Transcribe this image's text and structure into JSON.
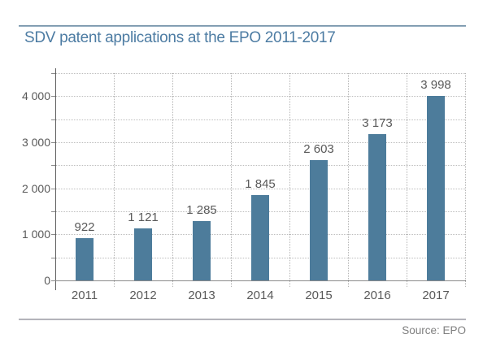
{
  "header": {
    "title": "SDV patent applications at the EPO 2011-2017",
    "accent_color": "#4d7ca3",
    "rule_color": "#68879f"
  },
  "footer": {
    "source_label": "Source: EPO",
    "text_color": "#7f7f7f",
    "rule_color": "#9b9ba2"
  },
  "chart_data": {
    "type": "bar",
    "title": "SDV patent applications at the EPO 2011-2017",
    "categories": [
      "2011",
      "2012",
      "2013",
      "2014",
      "2015",
      "2016",
      "2017"
    ],
    "values": [
      922,
      1121,
      1285,
      1845,
      2603,
      3173,
      3998
    ],
    "value_labels": [
      "922",
      "1 121",
      "1 285",
      "1 845",
      "2 603",
      "3 173",
      "3 998"
    ],
    "xlabel": "",
    "ylabel": "",
    "ylim": [
      0,
      4500
    ],
    "y_major_ticks": [
      0,
      1000,
      2000,
      3000,
      4000
    ],
    "y_tick_labels": [
      "0",
      "1 000",
      "2 000",
      "3 000",
      "4 000"
    ],
    "y_minor_step": 500,
    "grid": "dotted horizontal every 500 and dotted vertical per category",
    "legend": "none",
    "bar_color": "#4d7c9b",
    "label_color": "#595959",
    "source": "Source: EPO"
  }
}
